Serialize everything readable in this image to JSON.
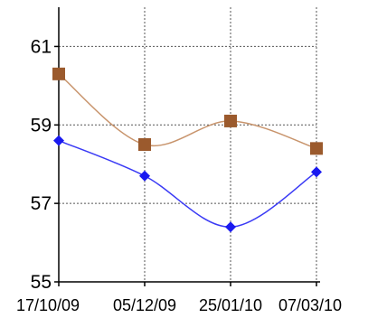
{
  "chart_data": {
    "type": "line",
    "x": [
      "17/10/09",
      "05/12/09",
      "25/01/10",
      "07/03/10"
    ],
    "y_ticks": [
      55,
      57,
      59,
      61
    ],
    "ylim": [
      55,
      62
    ],
    "grid": true,
    "smooth": true,
    "series": [
      {
        "values": [
          60.3,
          58.5,
          59.1,
          58.4
        ],
        "color": "#9b5a2d",
        "line_color": "#c8946c",
        "marker": "square"
      },
      {
        "values": [
          58.6,
          57.7,
          56.4,
          57.8
        ],
        "color": "#1a1af0",
        "line_color": "#3a3af5",
        "marker": "diamond"
      }
    ]
  }
}
